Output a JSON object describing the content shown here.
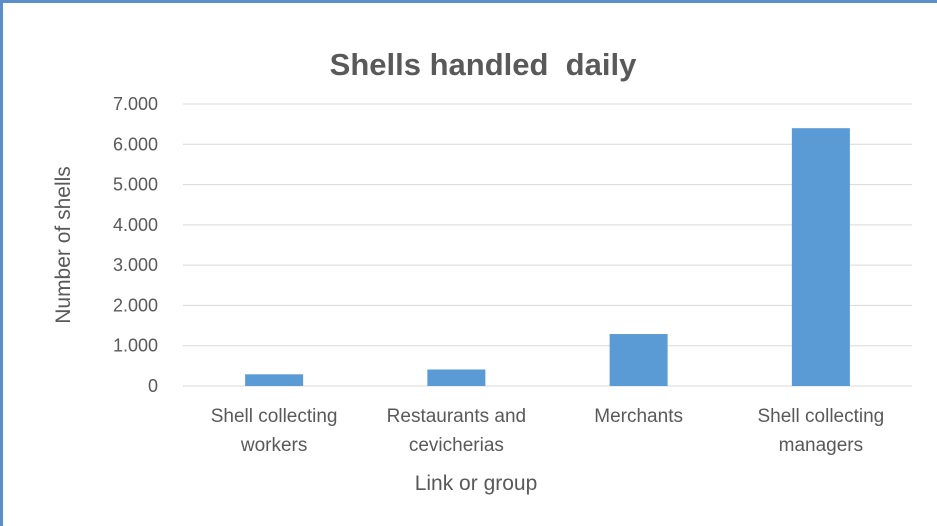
{
  "chart_data": {
    "type": "bar",
    "title": "Shells handled  daily",
    "xlabel": "Link or group",
    "ylabel": "Number of shells",
    "categories": [
      [
        "Shell collecting",
        "workers"
      ],
      [
        "Restaurants and",
        "cevicherias"
      ],
      [
        "Merchants"
      ],
      [
        "Shell collecting",
        "managers"
      ]
    ],
    "values": [
      290,
      410,
      1290,
      6400
    ],
    "ylim": [
      0,
      7000
    ],
    "yticks": [
      0,
      1000,
      2000,
      3000,
      4000,
      5000,
      6000,
      7000
    ],
    "ytick_labels": [
      "0",
      "1.000",
      "2.000",
      "3.000",
      "4.000",
      "5.000",
      "6.000",
      "7.000"
    ],
    "grid": true,
    "legend": "none",
    "bar_color": "#5b9bd5",
    "grid_color": "#d9d9d9",
    "frame_color": "#5b8fc9"
  }
}
